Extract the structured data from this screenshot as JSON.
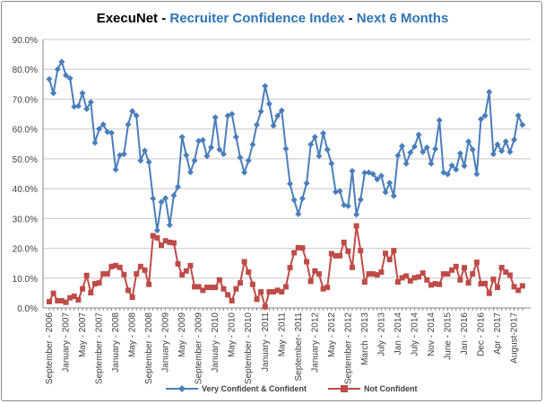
{
  "title": {
    "brand": "ExecuNet",
    "separator": " - ",
    "main": "Recruiter Confidence Index",
    "suffix": "Next 6 Months"
  },
  "colors": {
    "confident": "#4a7ebb",
    "not_confident": "#be4b48",
    "title_blue": "#2e75b6"
  },
  "chart_data": {
    "type": "line",
    "title": "ExecuNet - Recruiter Confidence Index - Next 6 Months",
    "ylim": [
      0,
      90
    ],
    "y_ticks": [
      "0.0%",
      "10.0%",
      "20.0%",
      "30.0%",
      "40.0%",
      "50.0%",
      "60.0%",
      "70.0%",
      "80.0%",
      "90.0%"
    ],
    "grid": true,
    "legend_position": "bottom",
    "x_tick_every": 4,
    "x_tick_labels": [
      "September - 2006",
      "January - 2007",
      "May - 2007",
      "September - 2007",
      "January - 2008",
      "May - 2008",
      "September - 2008",
      "January - 2009",
      "May - 2009",
      "September - 2009",
      "January - 2010",
      "May - 2010",
      "September - 2010",
      "January - 2011",
      "May - 2011",
      "September- 2011",
      "January - 2012",
      "May - 2012",
      "September - 2012",
      "March - 2013",
      "July - 2013",
      "Jan - 2014",
      "July - 2014",
      "Nov - 2014",
      "June - 2015",
      "Jan - 2016",
      "Dec - 2016",
      "Apr - 2017",
      "August-2017"
    ],
    "series": [
      {
        "name": "Very Confident & Confident",
        "values": [
          76.7,
          72,
          80,
          82.5,
          78,
          77,
          67.5,
          67.7,
          72,
          66.7,
          69,
          55.4,
          60,
          61.5,
          59,
          58.7,
          46.4,
          51.2,
          51.6,
          61.5,
          66,
          64.5,
          49.4,
          52.7,
          48.9,
          36.7,
          26,
          35.5,
          36.8,
          27.8,
          37.7,
          40.6,
          57.3,
          51.2,
          45.5,
          49.4,
          56,
          56.3,
          50.9,
          53.8,
          63.9,
          53.1,
          51.6,
          64.4,
          65,
          57.3,
          50.4,
          45.4,
          49.4,
          54.8,
          61.4,
          65.9,
          74.4,
          68.4,
          61.1,
          64.4,
          66.2,
          53.4,
          41.6,
          36.2,
          31.5,
          36.7,
          41.8,
          54.8,
          57.3,
          50.9,
          58.6,
          53.1,
          48.4,
          38.9,
          39.2,
          34.5,
          34.2,
          45.9,
          31.3,
          36.3,
          45.3,
          45.4,
          44.9,
          43.1,
          44.3,
          38.8,
          41.9,
          37.6,
          51.1,
          54.3,
          48.4,
          52.1,
          54.1,
          58.1,
          52.3,
          53.8,
          48.4,
          53.3,
          62.9,
          45.4,
          44.8,
          47.8,
          46.4,
          51.8,
          47.6,
          55.8,
          53.1,
          44.9,
          63.3,
          64.5,
          72.4,
          51.6,
          54.8,
          52.6,
          55.8,
          52.3,
          56.4,
          64.5,
          61.4
        ]
      },
      {
        "name": "Not Confident",
        "values": [
          2.1,
          4.9,
          2.4,
          2.4,
          1.9,
          3.4,
          3.9,
          2.7,
          6.4,
          10.9,
          5.1,
          8.1,
          8.4,
          11.4,
          11.4,
          13.9,
          14.2,
          13.6,
          11.2,
          5.9,
          3.6,
          11.4,
          13.9,
          12.7,
          7.9,
          24.2,
          23.5,
          21,
          22.5,
          22,
          21.8,
          14.8,
          11.1,
          12.4,
          14.2,
          7.1,
          7.1,
          5.9,
          6.9,
          6.9,
          6.9,
          9.4,
          6.4,
          4.4,
          2.4,
          6.4,
          8.4,
          15.5,
          12,
          7.9,
          2.9,
          5.4,
          0.4,
          5.4,
          5.4,
          5.9,
          5.4,
          7.1,
          13.5,
          18.5,
          20.2,
          20.1,
          15.5,
          8.9,
          12.4,
          11.4,
          6.4,
          6.9,
          18.2,
          17.5,
          17.5,
          22,
          19,
          13.6,
          27.5,
          19.2,
          8.7,
          11.4,
          11.4,
          11.1,
          12,
          18.3,
          16.2,
          19.2,
          8.7,
          10.1,
          10.7,
          9.1,
          10.1,
          10.4,
          11.7,
          9.4,
          7.7,
          8.1,
          7.9,
          11.4,
          11.4,
          12.7,
          13.9,
          9.4,
          13.5,
          8.4,
          11.4,
          15.3,
          8.1,
          8.2,
          4.9,
          9.6,
          6.9,
          13.5,
          12,
          11,
          7.1,
          5.9,
          7.4
        ]
      }
    ]
  }
}
